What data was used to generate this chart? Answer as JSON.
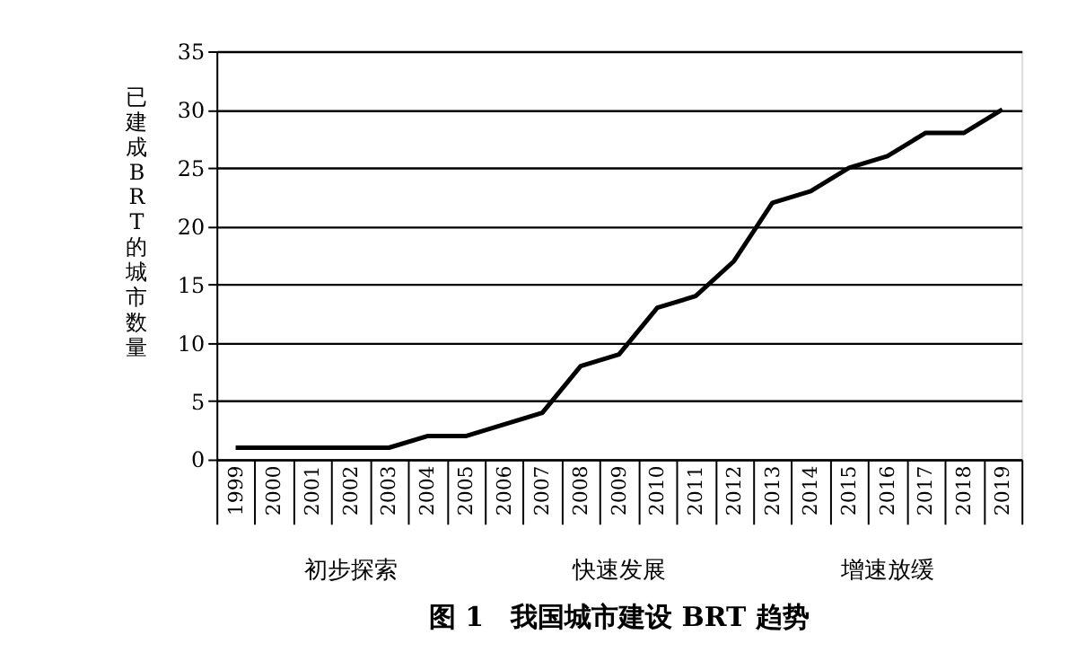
{
  "chart_data": {
    "type": "line",
    "title": "图 1　我国城市建设 BRT 趋势",
    "ylabel": "已建成BRT的城市数量",
    "categories": [
      "1999",
      "2000",
      "2001",
      "2002",
      "2003",
      "2004",
      "2005",
      "2006",
      "2007",
      "2008",
      "2009",
      "2010",
      "2011",
      "2012",
      "2013",
      "2014",
      "2015",
      "2016",
      "2017",
      "2018",
      "2019"
    ],
    "series": [
      {
        "color": "#000000",
        "values": [
          1,
          1,
          1,
          1,
          1,
          2,
          2,
          3,
          4,
          8,
          9,
          13,
          14,
          17,
          22,
          23,
          25,
          26,
          28,
          28,
          30
        ]
      }
    ],
    "ylim": [
      0,
      35
    ],
    "yticks": [
      0,
      5,
      10,
      15,
      20,
      25,
      30,
      35
    ],
    "grid": "y",
    "legend": false,
    "marker": "none",
    "line_style": "solid",
    "annotations": [
      "初步探索",
      "快速发展",
      "增速放缓"
    ]
  }
}
